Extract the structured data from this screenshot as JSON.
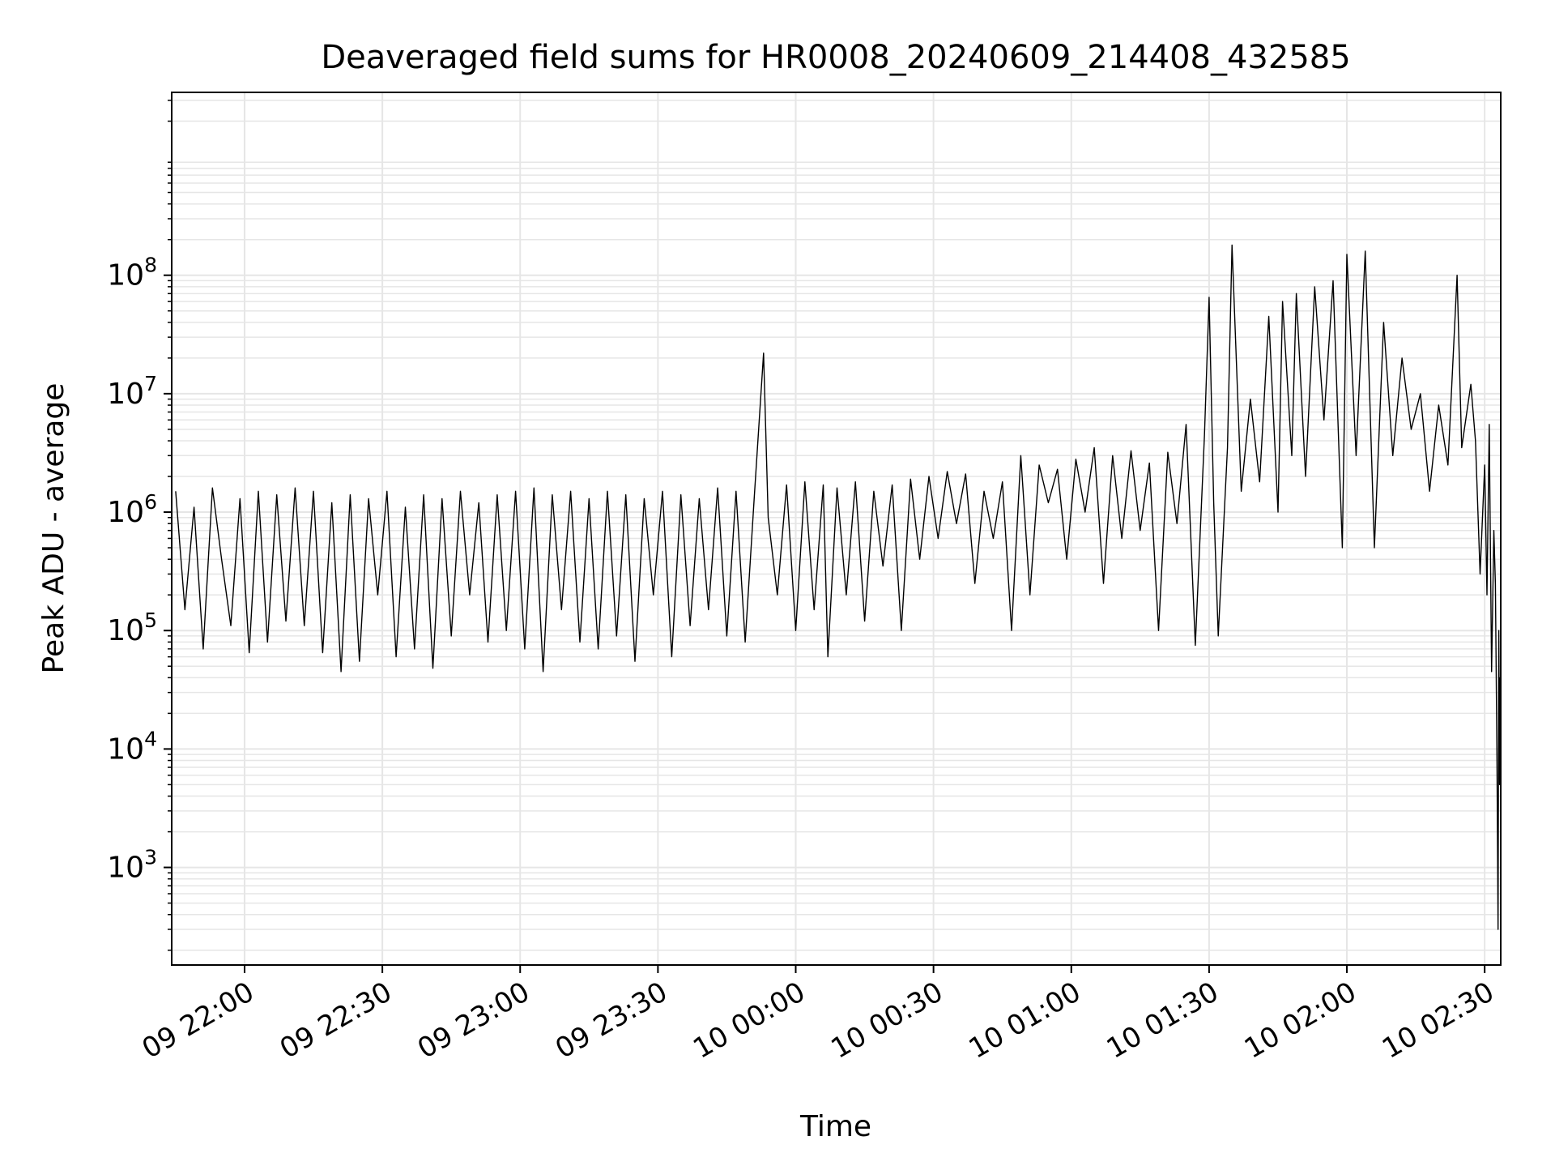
{
  "chart_data": {
    "type": "line",
    "title": "Deaveraged field sums for HR0008_20240609_214408_432585",
    "xlabel": "Time",
    "ylabel": "Peak ADU - average",
    "yscale": "log",
    "xlim": [
      "2024-06-09 21:44:08",
      "2024-06-10 02:33:30"
    ],
    "ylim": [
      150,
      3500000000
    ],
    "x_tick_labels": [
      "09 22:00",
      "09 22:30",
      "09 23:00",
      "09 23:30",
      "10 00:00",
      "10 00:30",
      "10 01:00",
      "10 01:30",
      "10 02:00",
      "10 02:30"
    ],
    "x_tick_times": [
      "2024-06-09 22:00",
      "2024-06-09 22:30",
      "2024-06-09 23:00",
      "2024-06-09 23:30",
      "2024-06-10 00:00",
      "2024-06-10 00:30",
      "2024-06-10 01:00",
      "2024-06-10 01:30",
      "2024-06-10 02:00",
      "2024-06-10 02:30"
    ],
    "y_tick_values": [
      1000,
      10000,
      100000,
      1000000,
      10000000,
      100000000
    ],
    "y_tick_base": "10",
    "y_tick_exponents": [
      "3",
      "4",
      "5",
      "6",
      "7",
      "8"
    ],
    "grid": true,
    "line_color": "#000000",
    "grid_color": "#e6e6e6",
    "series": [
      {
        "values_sampled": [
          [
            "2024-06-09 21:45",
            1500000
          ],
          [
            "2024-06-09 21:47",
            150000
          ],
          [
            "2024-06-09 21:49",
            1100000
          ],
          [
            "2024-06-09 21:51",
            70000
          ],
          [
            "2024-06-09 21:53",
            1600000
          ],
          [
            "2024-06-09 21:55",
            400000
          ],
          [
            "2024-06-09 21:57",
            110000
          ],
          [
            "2024-06-09 21:59",
            1300000
          ],
          [
            "2024-06-09 22:01",
            65000
          ],
          [
            "2024-06-09 22:03",
            1500000
          ],
          [
            "2024-06-09 22:05",
            80000
          ],
          [
            "2024-06-09 22:07",
            1400000
          ],
          [
            "2024-06-09 22:09",
            120000
          ],
          [
            "2024-06-09 22:11",
            1600000
          ],
          [
            "2024-06-09 22:13",
            110000
          ],
          [
            "2024-06-09 22:15",
            1500000
          ],
          [
            "2024-06-09 22:17",
            65000
          ],
          [
            "2024-06-09 22:19",
            1200000
          ],
          [
            "2024-06-09 22:21",
            45000
          ],
          [
            "2024-06-09 22:23",
            1400000
          ],
          [
            "2024-06-09 22:25",
            55000
          ],
          [
            "2024-06-09 22:27",
            1300000
          ],
          [
            "2024-06-09 22:29",
            200000
          ],
          [
            "2024-06-09 22:31",
            1500000
          ],
          [
            "2024-06-09 22:33",
            60000
          ],
          [
            "2024-06-09 22:35",
            1100000
          ],
          [
            "2024-06-09 22:37",
            70000
          ],
          [
            "2024-06-09 22:39",
            1400000
          ],
          [
            "2024-06-09 22:41",
            48000
          ],
          [
            "2024-06-09 22:43",
            1300000
          ],
          [
            "2024-06-09 22:45",
            90000
          ],
          [
            "2024-06-09 22:47",
            1500000
          ],
          [
            "2024-06-09 22:49",
            200000
          ],
          [
            "2024-06-09 22:51",
            1200000
          ],
          [
            "2024-06-09 22:53",
            80000
          ],
          [
            "2024-06-09 22:55",
            1400000
          ],
          [
            "2024-06-09 22:57",
            100000
          ],
          [
            "2024-06-09 22:59",
            1500000
          ],
          [
            "2024-06-09 23:01",
            70000
          ],
          [
            "2024-06-09 23:03",
            1600000
          ],
          [
            "2024-06-09 23:05",
            45000
          ],
          [
            "2024-06-09 23:07",
            1400000
          ],
          [
            "2024-06-09 23:09",
            150000
          ],
          [
            "2024-06-09 23:11",
            1500000
          ],
          [
            "2024-06-09 23:13",
            80000
          ],
          [
            "2024-06-09 23:15",
            1300000
          ],
          [
            "2024-06-09 23:17",
            70000
          ],
          [
            "2024-06-09 23:19",
            1500000
          ],
          [
            "2024-06-09 23:21",
            90000
          ],
          [
            "2024-06-09 23:23",
            1400000
          ],
          [
            "2024-06-09 23:25",
            55000
          ],
          [
            "2024-06-09 23:27",
            1300000
          ],
          [
            "2024-06-09 23:29",
            200000
          ],
          [
            "2024-06-09 23:31",
            1500000
          ],
          [
            "2024-06-09 23:33",
            60000
          ],
          [
            "2024-06-09 23:35",
            1400000
          ],
          [
            "2024-06-09 23:37",
            110000
          ],
          [
            "2024-06-09 23:39",
            1300000
          ],
          [
            "2024-06-09 23:41",
            150000
          ],
          [
            "2024-06-09 23:43",
            1600000
          ],
          [
            "2024-06-09 23:45",
            90000
          ],
          [
            "2024-06-09 23:47",
            1500000
          ],
          [
            "2024-06-09 23:49",
            80000
          ],
          [
            "2024-06-09 23:51",
            1400000
          ],
          [
            "2024-06-09 23:53",
            22000000
          ],
          [
            "2024-06-09 23:54",
            900000
          ],
          [
            "2024-06-09 23:56",
            200000
          ],
          [
            "2024-06-09 23:58",
            1700000
          ],
          [
            "2024-06-10 00:00",
            100000
          ],
          [
            "2024-06-10 00:02",
            1800000
          ],
          [
            "2024-06-10 00:04",
            150000
          ],
          [
            "2024-06-10 00:06",
            1700000
          ],
          [
            "2024-06-10 00:07",
            60000
          ],
          [
            "2024-06-10 00:09",
            1600000
          ],
          [
            "2024-06-10 00:11",
            200000
          ],
          [
            "2024-06-10 00:13",
            1800000
          ],
          [
            "2024-06-10 00:15",
            120000
          ],
          [
            "2024-06-10 00:17",
            1500000
          ],
          [
            "2024-06-10 00:19",
            350000
          ],
          [
            "2024-06-10 00:21",
            1700000
          ],
          [
            "2024-06-10 00:23",
            100000
          ],
          [
            "2024-06-10 00:25",
            1900000
          ],
          [
            "2024-06-10 00:27",
            400000
          ],
          [
            "2024-06-10 00:29",
            2000000
          ],
          [
            "2024-06-10 00:31",
            600000
          ],
          [
            "2024-06-10 00:33",
            2200000
          ],
          [
            "2024-06-10 00:35",
            800000
          ],
          [
            "2024-06-10 00:37",
            2100000
          ],
          [
            "2024-06-10 00:39",
            250000
          ],
          [
            "2024-06-10 00:41",
            1500000
          ],
          [
            "2024-06-10 00:43",
            600000
          ],
          [
            "2024-06-10 00:45",
            1800000
          ],
          [
            "2024-06-10 00:47",
            100000
          ],
          [
            "2024-06-10 00:49",
            3000000
          ],
          [
            "2024-06-10 00:51",
            200000
          ],
          [
            "2024-06-10 00:53",
            2500000
          ],
          [
            "2024-06-10 00:55",
            1200000
          ],
          [
            "2024-06-10 00:57",
            2300000
          ],
          [
            "2024-06-10 00:59",
            400000
          ],
          [
            "2024-06-10 01:01",
            2800000
          ],
          [
            "2024-06-10 01:03",
            1000000
          ],
          [
            "2024-06-10 01:05",
            3500000
          ],
          [
            "2024-06-10 01:07",
            250000
          ],
          [
            "2024-06-10 01:09",
            3000000
          ],
          [
            "2024-06-10 01:11",
            600000
          ],
          [
            "2024-06-10 01:13",
            3300000
          ],
          [
            "2024-06-10 01:15",
            700000
          ],
          [
            "2024-06-10 01:17",
            2600000
          ],
          [
            "2024-06-10 01:19",
            100000
          ],
          [
            "2024-06-10 01:21",
            3200000
          ],
          [
            "2024-06-10 01:23",
            800000
          ],
          [
            "2024-06-10 01:25",
            5500000
          ],
          [
            "2024-06-10 01:27",
            75000
          ],
          [
            "2024-06-10 01:29",
            4500000
          ],
          [
            "2024-06-10 01:30",
            65000000
          ],
          [
            "2024-06-10 01:31",
            1200000
          ],
          [
            "2024-06-10 01:32",
            90000
          ],
          [
            "2024-06-10 01:34",
            3500000
          ],
          [
            "2024-06-10 01:35",
            180000000
          ],
          [
            "2024-06-10 01:37",
            1500000
          ],
          [
            "2024-06-10 01:39",
            9000000
          ],
          [
            "2024-06-10 01:41",
            1800000
          ],
          [
            "2024-06-10 01:43",
            45000000
          ],
          [
            "2024-06-10 01:45",
            1000000
          ],
          [
            "2024-06-10 01:46",
            60000000
          ],
          [
            "2024-06-10 01:48",
            3000000
          ],
          [
            "2024-06-10 01:49",
            70000000
          ],
          [
            "2024-06-10 01:51",
            2000000
          ],
          [
            "2024-06-10 01:53",
            80000000
          ],
          [
            "2024-06-10 01:55",
            6000000
          ],
          [
            "2024-06-10 01:57",
            90000000
          ],
          [
            "2024-06-10 01:59",
            500000
          ],
          [
            "2024-06-10 02:00",
            150000000
          ],
          [
            "2024-06-10 02:02",
            3000000
          ],
          [
            "2024-06-10 02:04",
            160000000
          ],
          [
            "2024-06-10 02:06",
            500000
          ],
          [
            "2024-06-10 02:08",
            40000000
          ],
          [
            "2024-06-10 02:10",
            3000000
          ],
          [
            "2024-06-10 02:12",
            20000000
          ],
          [
            "2024-06-10 02:14",
            5000000
          ],
          [
            "2024-06-10 02:16",
            10000000
          ],
          [
            "2024-06-10 02:18",
            1500000
          ],
          [
            "2024-06-10 02:20",
            8000000
          ],
          [
            "2024-06-10 02:22",
            2500000
          ],
          [
            "2024-06-10 02:24",
            100000000
          ],
          [
            "2024-06-10 02:25",
            3500000
          ],
          [
            "2024-06-10 02:27",
            12000000
          ],
          [
            "2024-06-10 02:28",
            4000000
          ],
          [
            "2024-06-10 02:29",
            300000
          ],
          [
            "2024-06-10 02:30",
            2500000
          ],
          [
            "2024-06-10 02:30:30",
            200000
          ],
          [
            "2024-06-10 02:31",
            5500000
          ],
          [
            "2024-06-10 02:31:30",
            45000
          ],
          [
            "2024-06-10 02:32",
            700000
          ],
          [
            "2024-06-10 02:32:20",
            250000
          ],
          [
            "2024-06-10 02:32:40",
            9000
          ],
          [
            "2024-06-10 02:32:55",
            300
          ],
          [
            "2024-06-10 02:33:05",
            100000
          ],
          [
            "2024-06-10 02:33:15",
            5000
          ],
          [
            "2024-06-10 02:33:22",
            40000
          ],
          [
            "2024-06-10 02:33:30",
            6000
          ]
        ]
      }
    ]
  }
}
